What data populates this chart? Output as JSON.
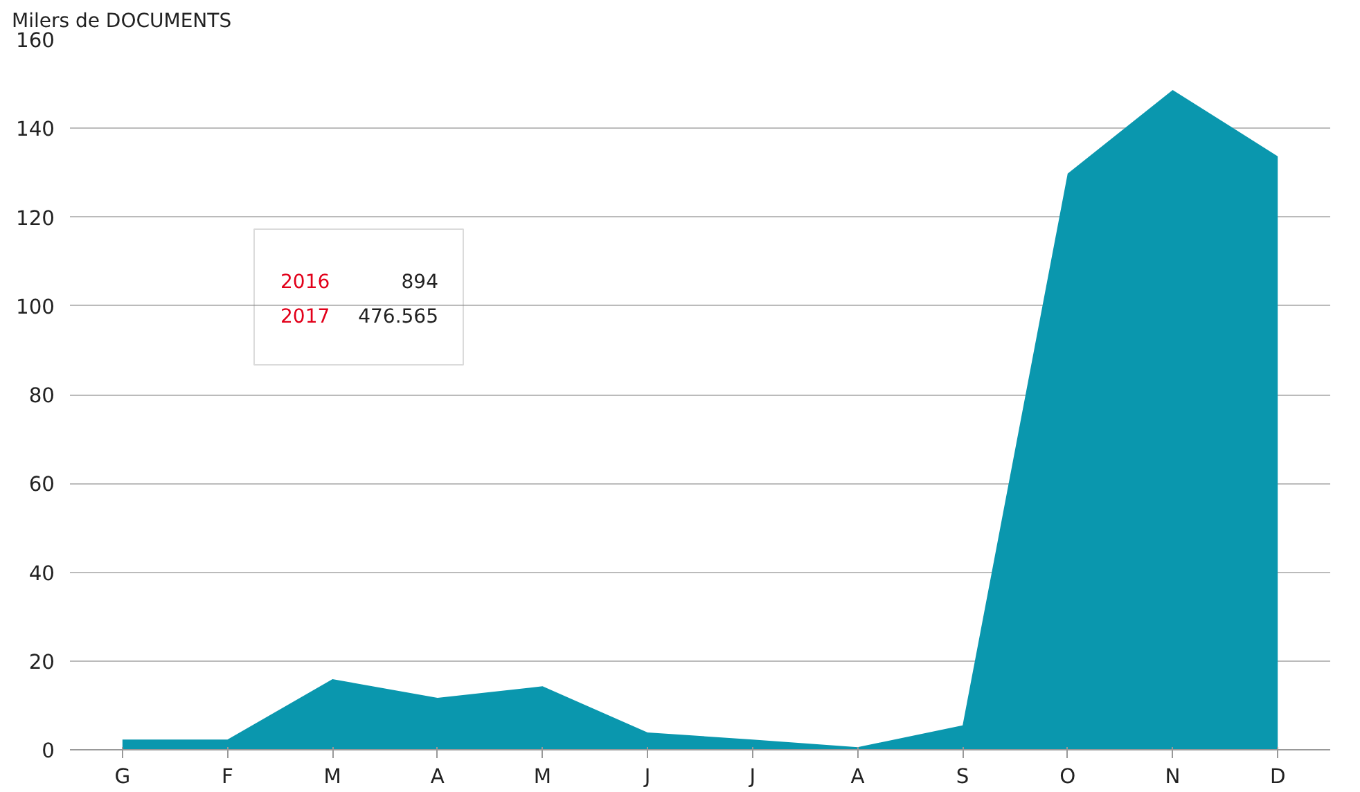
{
  "chart_data": {
    "type": "area",
    "ylabel": "Milers de DOCUMENTS",
    "categories": [
      "G",
      "F",
      "M",
      "A",
      "M",
      "J",
      "J",
      "A",
      "S",
      "O",
      "N",
      "D"
    ],
    "series": [
      {
        "color": "#0a97ae",
        "values": [
          2.3,
          2.3,
          15.9,
          11.7,
          14.3,
          3.9,
          2.3,
          0.6,
          5.5,
          129.8,
          148.6,
          133.7
        ]
      }
    ],
    "ylim": [
      0,
      160
    ],
    "yticks": [
      0,
      20,
      40,
      60,
      80,
      100,
      120,
      140,
      160
    ],
    "grid": "y",
    "annotations": [
      "2016",
      "894",
      "2017",
      "476.565"
    ]
  }
}
